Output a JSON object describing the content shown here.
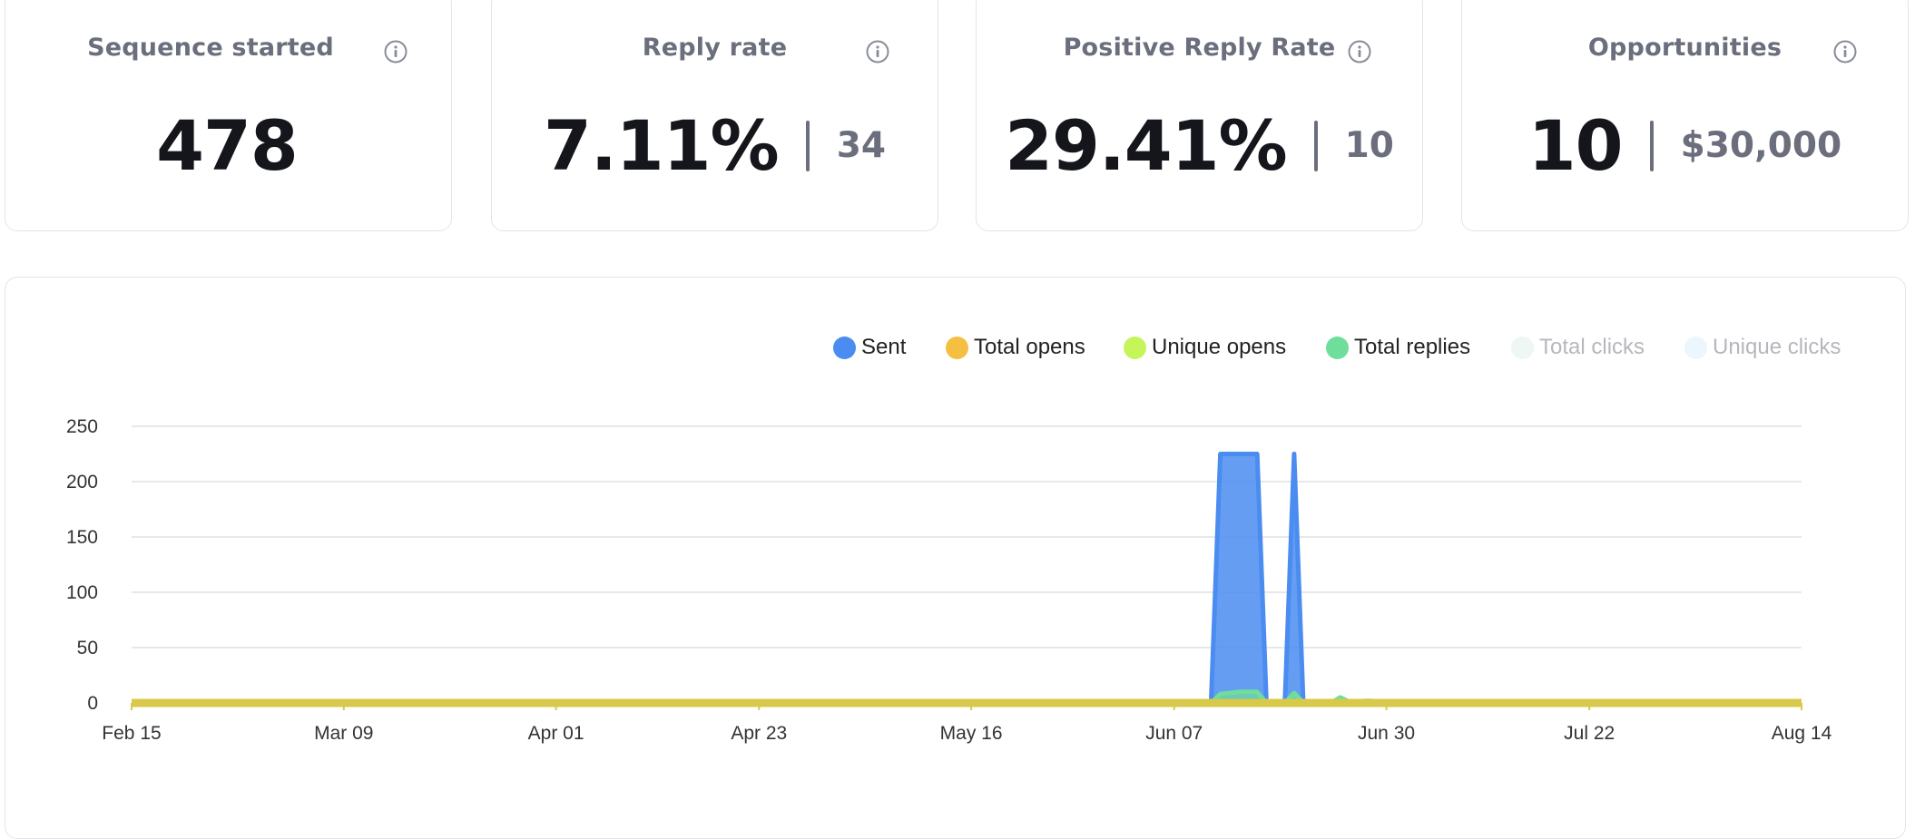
{
  "stats": [
    {
      "title": "Sequence started",
      "value": "478",
      "secondary": ""
    },
    {
      "title": "Reply rate",
      "value": "7.11%",
      "secondary": "34"
    },
    {
      "title": "Positive Reply Rate",
      "value": "29.41%",
      "secondary": "10"
    },
    {
      "title": "Opportunities",
      "value": "10",
      "secondary": "$30,000"
    }
  ],
  "colors": {
    "sent": "#4a8cf0",
    "total_opens": "#f5bf42",
    "unique_opens": "#c6f55a",
    "total_replies": "#6fdd9b",
    "total_clicks": "#eef7f3",
    "unique_clicks": "#ebf6fd",
    "axis_line": "#d8c94a"
  },
  "chart_data": {
    "type": "area",
    "x_ticks": [
      "Feb 15",
      "Mar 09",
      "Apr 01",
      "Apr 23",
      "May 16",
      "Jun 07",
      "Jun 30",
      "Jul 22",
      "Aug 14"
    ],
    "y_ticks": [
      0,
      50,
      100,
      150,
      200,
      250
    ],
    "ylim": [
      0,
      250
    ],
    "x_range": [
      "Feb 15",
      "Aug 14"
    ],
    "grid": true,
    "legend_position": "top-right",
    "series": [
      {
        "name": "Sent",
        "active": true,
        "points": [
          [
            "Feb 15",
            0
          ],
          [
            "Jun 11",
            0
          ],
          [
            "Jun 12",
            225
          ],
          [
            "Jun 14",
            225
          ],
          [
            "Jun 16",
            225
          ],
          [
            "Jun 17",
            0
          ],
          [
            "Jun 19",
            0
          ],
          [
            "Jun 20",
            225
          ],
          [
            "Jun 21",
            0
          ],
          [
            "Aug 14",
            0
          ]
        ]
      },
      {
        "name": "Total opens",
        "active": true,
        "points": [
          [
            "Feb 15",
            0
          ],
          [
            "Aug 14",
            0
          ]
        ]
      },
      {
        "name": "Unique opens",
        "active": true,
        "points": [
          [
            "Feb 15",
            0
          ],
          [
            "Aug 14",
            0
          ]
        ]
      },
      {
        "name": "Total replies",
        "active": true,
        "points": [
          [
            "Feb 15",
            0
          ],
          [
            "Jun 11",
            0
          ],
          [
            "Jun 12",
            8
          ],
          [
            "Jun 14",
            10
          ],
          [
            "Jun 16",
            10
          ],
          [
            "Jun 17",
            0
          ],
          [
            "Jun 19",
            0
          ],
          [
            "Jun 20",
            9
          ],
          [
            "Jun 21",
            0
          ],
          [
            "Jun 24",
            0
          ],
          [
            "Jun 25",
            5
          ],
          [
            "Jun 26",
            1
          ],
          [
            "Jun 28",
            2
          ],
          [
            "Jun 30",
            1
          ],
          [
            "Jul 01",
            0
          ],
          [
            "Aug 14",
            0
          ]
        ]
      },
      {
        "name": "Total clicks",
        "active": false,
        "points": [
          [
            "Feb 15",
            0
          ],
          [
            "Aug 14",
            0
          ]
        ]
      },
      {
        "name": "Unique clicks",
        "active": false,
        "points": [
          [
            "Feb 15",
            0
          ],
          [
            "Aug 14",
            0
          ]
        ]
      }
    ]
  }
}
